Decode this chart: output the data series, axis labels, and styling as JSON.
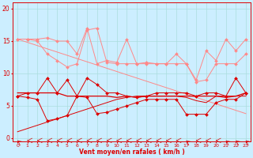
{
  "x": [
    0,
    1,
    2,
    3,
    4,
    5,
    6,
    7,
    8,
    9,
    10,
    11,
    12,
    13,
    14,
    15,
    16,
    17,
    18,
    19,
    20,
    21,
    22,
    23
  ],
  "line_rafale1": [
    15.3,
    15.3,
    15.3,
    15.5,
    15.0,
    15.0,
    13.0,
    17.0,
    11.5,
    12.0,
    11.7,
    15.3,
    11.5,
    11.7,
    11.5,
    11.5,
    13.0,
    11.5,
    9.0,
    13.5,
    12.0,
    15.3,
    13.5,
    15.3
  ],
  "line_rafale2": [
    15.3,
    15.3,
    15.0,
    13.0,
    12.0,
    11.0,
    11.5,
    16.7,
    17.0,
    11.7,
    11.5,
    11.5,
    11.5,
    11.5,
    11.5,
    11.5,
    11.5,
    11.5,
    8.7,
    9.0,
    11.5,
    11.5,
    11.5,
    13.0
  ],
  "line_trend_top": [
    15.3,
    14.8,
    14.3,
    13.8,
    13.3,
    12.8,
    12.3,
    11.8,
    11.3,
    10.8,
    10.3,
    9.8,
    9.3,
    8.8,
    8.3,
    7.8,
    7.3,
    6.8,
    6.3,
    5.8,
    5.3,
    4.8,
    4.3,
    3.8
  ],
  "line_vent1": [
    6.5,
    7.0,
    7.0,
    9.3,
    7.0,
    9.0,
    6.5,
    9.3,
    8.3,
    7.0,
    7.0,
    6.5,
    6.3,
    6.5,
    7.0,
    7.0,
    7.0,
    7.0,
    6.5,
    7.0,
    7.0,
    6.5,
    9.3,
    7.0
  ],
  "line_vent2": [
    7.0,
    7.0,
    7.0,
    7.0,
    7.0,
    6.5,
    6.5,
    6.5,
    6.5,
    6.5,
    6.3,
    6.5,
    6.3,
    6.5,
    6.5,
    6.5,
    6.5,
    6.5,
    6.5,
    6.5,
    6.5,
    6.3,
    6.5,
    7.0
  ],
  "line_vent3": [
    6.5,
    6.3,
    6.0,
    2.7,
    3.0,
    3.5,
    6.5,
    6.3,
    3.8,
    4.0,
    4.5,
    5.0,
    5.5,
    6.0,
    6.0,
    6.0,
    6.0,
    3.7,
    3.7,
    3.7,
    5.5,
    6.0,
    6.0,
    7.0
  ],
  "line_trend_bot": [
    1.0,
    1.5,
    2.0,
    2.5,
    3.0,
    3.5,
    4.0,
    4.5,
    5.0,
    5.5,
    6.0,
    6.3,
    6.5,
    6.5,
    6.5,
    6.5,
    6.5,
    6.3,
    5.8,
    5.5,
    6.5,
    6.5,
    6.5,
    6.5
  ],
  "arrow_dirs": [
    225,
    270,
    270,
    270,
    270,
    270,
    270,
    270,
    270,
    270,
    270,
    270,
    270,
    270,
    270,
    270,
    270,
    225,
    270,
    270,
    270,
    225,
    225,
    225
  ],
  "bg_color": "#cceeff",
  "grid_color": "#aadddd",
  "color_light": "#ff8888",
  "color_dark": "#dd0000",
  "xlabel": "Vent moyen/en rafales ( km/h )",
  "yticks": [
    0,
    5,
    10,
    15,
    20
  ],
  "xtick_labels": [
    "0",
    "1",
    "2",
    "3",
    "4",
    "5",
    "6",
    "7",
    "8",
    "9",
    "10",
    "11",
    "12",
    "13",
    "14",
    "15",
    "16",
    "17",
    "18",
    "19",
    "20",
    "21",
    "22",
    "23"
  ],
  "ylim": [
    -0.5,
    21
  ],
  "xlim": [
    -0.5,
    23.5
  ]
}
